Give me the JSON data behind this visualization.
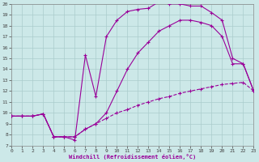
{
  "xlabel": "Windchill (Refroidissement éolien,°C)",
  "bg_color": "#cce8e8",
  "line_color": "#990099",
  "grid_color": "#aacccc",
  "xlim": [
    0,
    23
  ],
  "ylim": [
    7,
    20
  ],
  "xticks": [
    0,
    1,
    2,
    3,
    4,
    5,
    6,
    7,
    8,
    9,
    10,
    11,
    12,
    13,
    14,
    15,
    16,
    17,
    18,
    19,
    20,
    21,
    22,
    23
  ],
  "yticks": [
    7,
    8,
    9,
    10,
    11,
    12,
    13,
    14,
    15,
    16,
    17,
    18,
    19,
    20
  ],
  "curve_bottom_x": [
    0,
    1,
    2,
    3,
    4,
    5,
    6,
    7,
    8,
    9,
    10,
    11,
    12,
    13,
    14,
    15,
    16,
    17,
    18,
    19,
    20,
    21,
    22,
    23
  ],
  "curve_bottom_y": [
    9.7,
    9.7,
    9.7,
    9.9,
    7.8,
    7.8,
    7.8,
    8.5,
    9.0,
    9.5,
    10.0,
    10.3,
    10.7,
    11.0,
    11.3,
    11.5,
    11.8,
    12.0,
    12.2,
    12.4,
    12.6,
    12.7,
    12.8,
    12.0
  ],
  "curve_mid_x": [
    0,
    1,
    2,
    3,
    4,
    5,
    6,
    7,
    8,
    9,
    10,
    11,
    12,
    13,
    14,
    15,
    16,
    17,
    18,
    19,
    20,
    21,
    22,
    23
  ],
  "curve_mid_y": [
    9.7,
    9.7,
    9.7,
    9.9,
    7.8,
    7.8,
    7.8,
    8.5,
    9.0,
    10.0,
    12.0,
    14.0,
    15.5,
    16.5,
    17.5,
    18.0,
    18.5,
    18.5,
    18.3,
    18.0,
    17.0,
    14.5,
    14.5,
    12.0
  ],
  "curve_top_x": [
    0,
    1,
    2,
    3,
    4,
    5,
    6,
    7,
    8,
    9,
    10,
    11,
    12,
    13,
    14,
    15,
    16,
    17,
    18,
    19,
    20,
    21,
    22,
    23
  ],
  "curve_top_y": [
    9.7,
    9.7,
    9.7,
    9.9,
    7.8,
    7.8,
    7.5,
    15.3,
    11.5,
    17.0,
    18.5,
    19.3,
    19.5,
    19.6,
    20.2,
    20.0,
    20.0,
    19.8,
    19.8,
    19.2,
    18.5,
    15.0,
    14.5,
    12.0
  ]
}
